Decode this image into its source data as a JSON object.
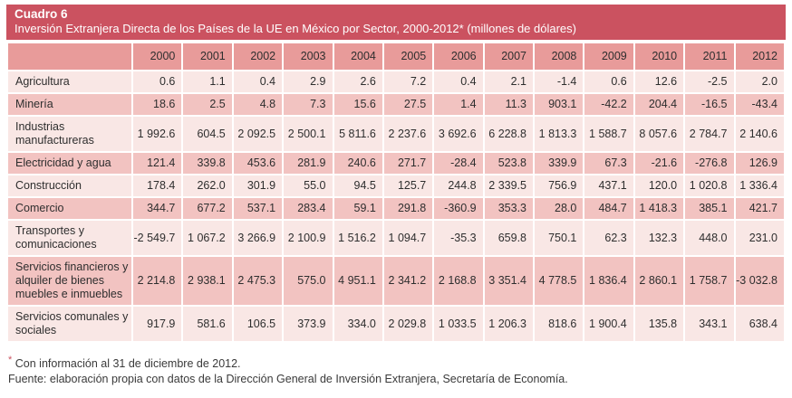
{
  "header": {
    "label": "Cuadro 6",
    "subtitle": "Inversión Extranjera Directa de los Países de la UE en México por Sector, 2000-2012* (millones de dólares)"
  },
  "colors": {
    "title_band_bg": "#cb5260",
    "title_text": "#ffffff",
    "year_header_bg": "#e89b9a",
    "row_light_bg": "#f9e7e5",
    "row_medium_bg": "#f2c3c1",
    "grid_line": "#ffffff",
    "body_text": "#2e2e2e",
    "asterisk_red": "#cb5260"
  },
  "chart_data": {
    "type": "table",
    "title": "Inversión Extranjera Directa de los Países de la UE en México por Sector, 2000-2012 (millones de dólares)",
    "categories": [
      "2000",
      "2001",
      "2002",
      "2003",
      "2004",
      "2005",
      "2006",
      "2007",
      "2008",
      "2009",
      "2010",
      "2011",
      "2012"
    ],
    "series": [
      {
        "name": "Agricultura",
        "values": [
          0.6,
          1.1,
          0.4,
          2.9,
          2.6,
          7.2,
          0.4,
          2.1,
          -1.4,
          0.6,
          12.6,
          -2.5,
          2.0
        ]
      },
      {
        "name": "Minería",
        "values": [
          18.6,
          2.5,
          4.8,
          7.3,
          15.6,
          27.5,
          1.4,
          11.3,
          903.1,
          -42.2,
          204.4,
          -16.5,
          -43.4
        ]
      },
      {
        "name": "Industrias manufactureras",
        "values": [
          1992.6,
          604.5,
          2092.5,
          2500.1,
          5811.6,
          2237.6,
          3692.6,
          6228.8,
          1813.3,
          1588.7,
          8057.6,
          2784.7,
          2140.6
        ]
      },
      {
        "name": "Electricidad y agua",
        "values": [
          121.4,
          339.8,
          453.6,
          281.9,
          240.6,
          271.7,
          -28.4,
          523.8,
          339.9,
          67.3,
          -21.6,
          -276.8,
          126.9
        ]
      },
      {
        "name": "Construcción",
        "values": [
          178.4,
          262.0,
          301.9,
          55.0,
          94.5,
          125.7,
          244.8,
          2339.5,
          756.9,
          437.1,
          120.0,
          1020.8,
          1336.4
        ]
      },
      {
        "name": "Comercio",
        "values": [
          344.7,
          677.2,
          537.1,
          283.4,
          59.1,
          291.8,
          -360.9,
          353.3,
          28.0,
          484.7,
          1418.3,
          385.1,
          421.7
        ]
      },
      {
        "name": "Transportes y comunicaciones",
        "values": [
          -2549.7,
          1067.2,
          3266.9,
          2100.9,
          1516.2,
          1094.7,
          -35.3,
          659.8,
          750.1,
          62.3,
          132.3,
          448.0,
          231.0
        ]
      },
      {
        "name": "Servicios financieros y alquiler de bienes muebles e inmuebles",
        "values": [
          2214.8,
          2938.1,
          2475.3,
          575.0,
          4951.1,
          2341.2,
          2168.8,
          3351.4,
          4778.5,
          1836.4,
          2860.1,
          1758.7,
          -3032.8
        ]
      },
      {
        "name": "Servicios comunales y sociales",
        "values": [
          917.9,
          581.6,
          106.5,
          373.9,
          334.0,
          2029.8,
          1033.5,
          1206.3,
          818.6,
          1900.4,
          135.8,
          343.1,
          638.4
        ]
      }
    ]
  },
  "table": {
    "year_columns": [
      "2000",
      "2001",
      "2002",
      "2003",
      "2004",
      "2005",
      "2006",
      "2007",
      "2008",
      "2009",
      "2010",
      "2011",
      "2012"
    ],
    "rows": [
      {
        "sector": "Agricultura",
        "values": [
          "0.6",
          "1.1",
          "0.4",
          "2.9",
          "2.6",
          "7.2",
          "0.4",
          "2.1",
          "-1.4",
          "0.6",
          "12.6",
          "-2.5",
          "2.0"
        ]
      },
      {
        "sector": "Minería",
        "values": [
          "18.6",
          "2.5",
          "4.8",
          "7.3",
          "15.6",
          "27.5",
          "1.4",
          "11.3",
          "903.1",
          "-42.2",
          "204.4",
          "-16.5",
          "-43.4"
        ]
      },
      {
        "sector": "Industrias manufactureras",
        "values": [
          "1 992.6",
          "604.5",
          "2 092.5",
          "2 500.1",
          "5 811.6",
          "2 237.6",
          "3 692.6",
          "6 228.8",
          "1 813.3",
          "1 588.7",
          "8 057.6",
          "2 784.7",
          "2 140.6"
        ]
      },
      {
        "sector": "Electricidad y agua",
        "values": [
          "121.4",
          "339.8",
          "453.6",
          "281.9",
          "240.6",
          "271.7",
          "-28.4",
          "523.8",
          "339.9",
          "67.3",
          "-21.6",
          "-276.8",
          "126.9"
        ]
      },
      {
        "sector": "Construcción",
        "values": [
          "178.4",
          "262.0",
          "301.9",
          "55.0",
          "94.5",
          "125.7",
          "244.8",
          "2 339.5",
          "756.9",
          "437.1",
          "120.0",
          "1 020.8",
          "1 336.4"
        ]
      },
      {
        "sector": "Comercio",
        "values": [
          "344.7",
          "677.2",
          "537.1",
          "283.4",
          "59.1",
          "291.8",
          "-360.9",
          "353.3",
          "28.0",
          "484.7",
          "1 418.3",
          "385.1",
          "421.7"
        ]
      },
      {
        "sector": "Transportes y comunicaciones",
        "values": [
          "-2 549.7",
          "1 067.2",
          "3 266.9",
          "2 100.9",
          "1 516.2",
          "1 094.7",
          "-35.3",
          "659.8",
          "750.1",
          "62.3",
          "132.3",
          "448.0",
          "231.0"
        ]
      },
      {
        "sector": "Servicios financieros y alquiler de bienes muebles e inmuebles",
        "values": [
          "2 214.8",
          "2 938.1",
          "2 475.3",
          "575.0",
          "4 951.1",
          "2 341.2",
          "2 168.8",
          "3 351.4",
          "4 778.5",
          "1 836.4",
          "2 860.1",
          "1 758.7",
          "-3 032.8"
        ]
      },
      {
        "sector": "Servicios comunales y sociales",
        "values": [
          "917.9",
          "581.6",
          "106.5",
          "373.9",
          "334.0",
          "2 029.8",
          "1 033.5",
          "1 206.3",
          "818.6",
          "1 900.4",
          "135.8",
          "343.1",
          "638.4"
        ]
      }
    ]
  },
  "footnotes": {
    "asterisk": "*",
    "note": "Con información al 31 de diciembre de 2012.",
    "source": "Fuente: elaboración propia con datos de la Dirección General de Inversión Extranjera, Secretaría de Economía."
  }
}
